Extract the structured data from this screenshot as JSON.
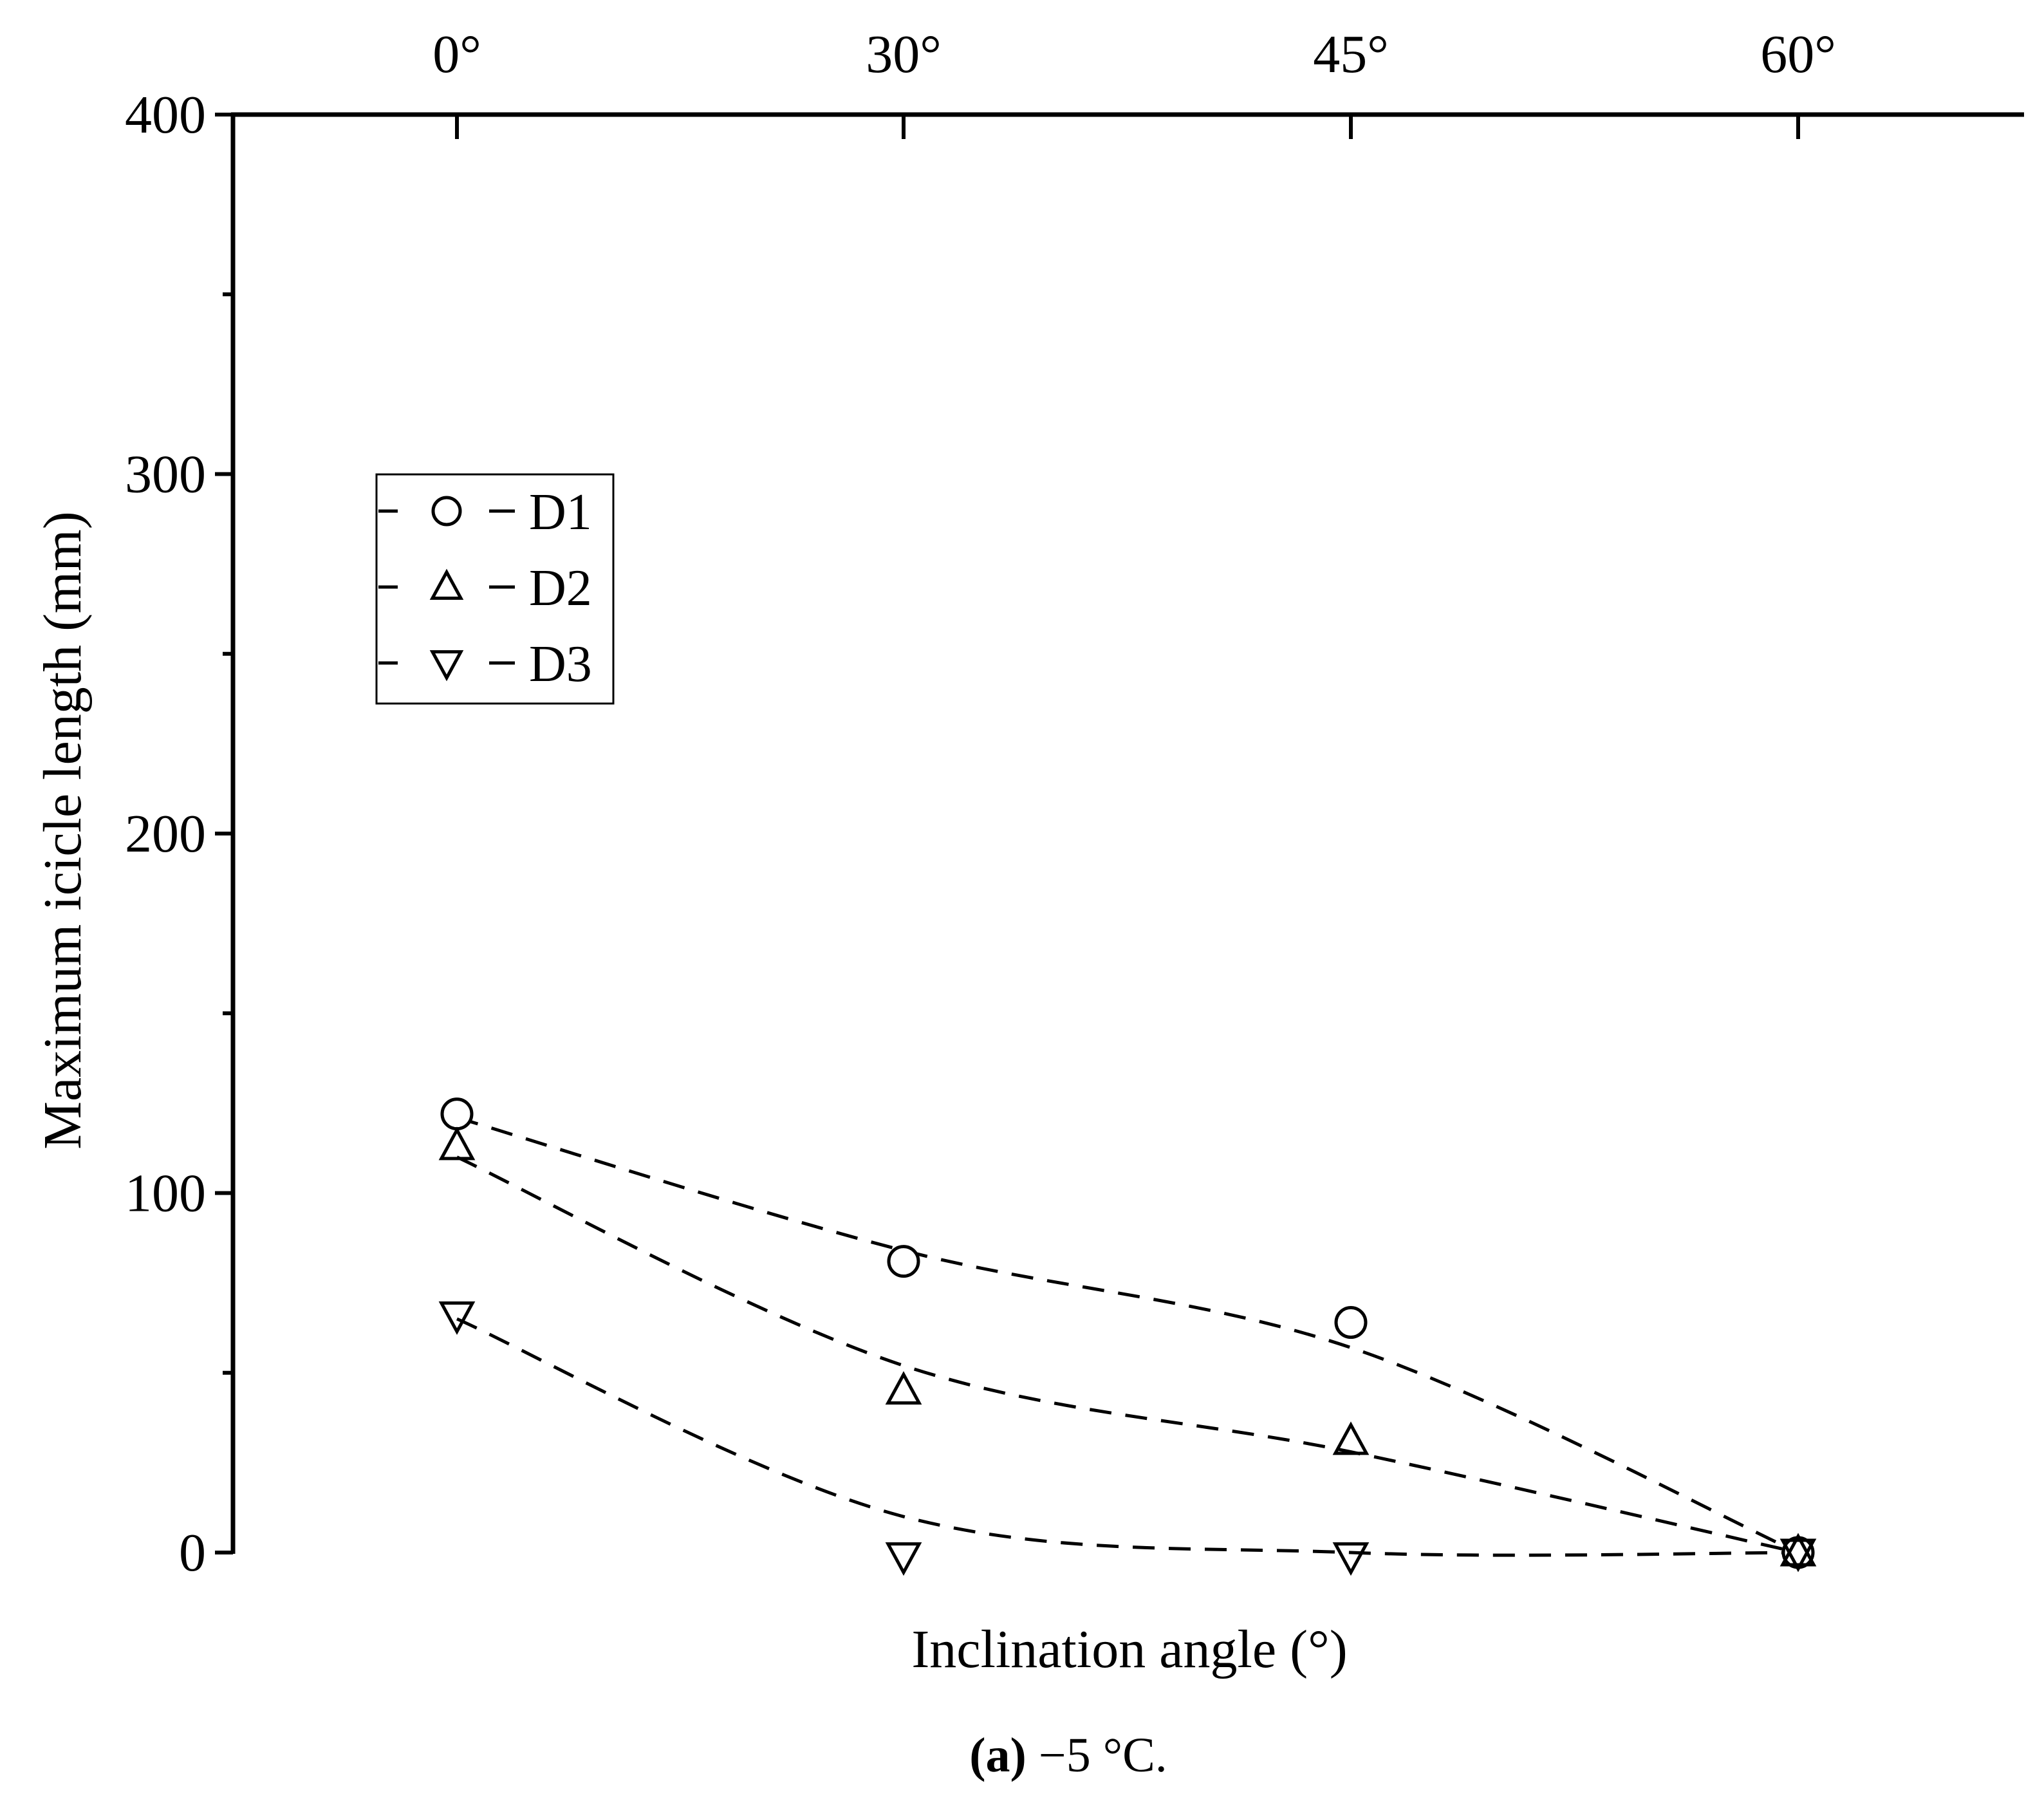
{
  "chart_data": {
    "type": "scatter",
    "title": "",
    "xlabel": "Inclination angle (°)",
    "ylabel": "Maximum icicle length (mm)",
    "x": [
      0,
      30,
      45,
      60
    ],
    "x_tick_labels": [
      "0°",
      "30°",
      "45°",
      "60°"
    ],
    "ylim": [
      0,
      400
    ],
    "y_ticks": [
      0,
      100,
      200,
      300,
      400
    ],
    "y_tick_labels": [
      "0",
      "100",
      "200",
      "300",
      "400"
    ],
    "grid": false,
    "legend_position": "upper-left",
    "series": [
      {
        "name": "D1",
        "marker": "circle",
        "values": [
          122,
          81,
          64,
          0
        ],
        "fit": [
          121,
          84,
          57,
          0
        ]
      },
      {
        "name": "D2",
        "marker": "triangle-up",
        "values": [
          113,
          45,
          31,
          0
        ],
        "fit": [
          110,
          52,
          28,
          0
        ]
      },
      {
        "name": "D3",
        "marker": "triangle-down",
        "values": [
          66,
          -1,
          -1,
          0
        ],
        "fit": [
          65,
          10,
          0,
          0
        ]
      }
    ]
  },
  "caption": {
    "label": "(a)",
    "text": " −5 °C."
  }
}
